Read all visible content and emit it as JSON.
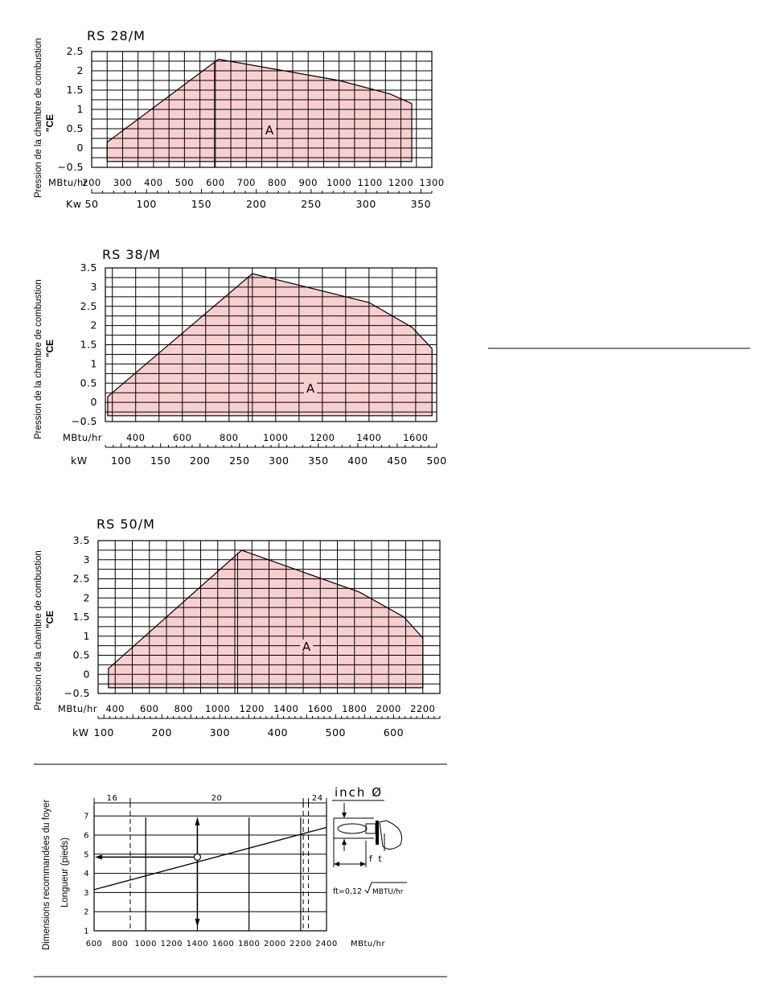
{
  "chart_data": [
    {
      "type": "area",
      "title": "RS 28/M",
      "ylabel_line1": "Pression de la chambre de combustion",
      "ylabel_line2": "\"CE",
      "x_unit": "MBtu/hr",
      "x_ticks": [
        "200",
        "300",
        "400",
        "500",
        "600",
        "700",
        "800",
        "900",
        "1000",
        "1100",
        "1200",
        "1300"
      ],
      "x_range": [
        200,
        1300
      ],
      "x2_unit": "Kw",
      "x2_ticks": [
        "50",
        "100",
        "150",
        "200",
        "250",
        "300",
        "350"
      ],
      "x2_range": [
        50,
        360
      ],
      "y_ticks": [
        "2.5",
        "2",
        "1.5",
        "1",
        "0.5",
        "0",
        "−0.5"
      ],
      "y_range": [
        -0.5,
        2.5
      ],
      "region_label": "A",
      "polygon": [
        [
          250,
          -0.35
        ],
        [
          250,
          0.15
        ],
        [
          610,
          2.3
        ],
        [
          1000,
          1.75
        ],
        [
          1165,
          1.4
        ],
        [
          1235,
          1.15
        ],
        [
          1235,
          -0.35
        ]
      ],
      "fill": "#f8cfd0"
    },
    {
      "type": "area",
      "title": "RS 38/M",
      "ylabel_line1": "Pression de la chambre de combustion",
      "ylabel_line2": "\"CE",
      "x_unit": "MBtu/hr",
      "x_ticks": [
        "400",
        "600",
        "800",
        "1000",
        "1200",
        "1400",
        "1600"
      ],
      "x_range": [
        270,
        1690
      ],
      "x2_unit": "kW",
      "x2_ticks": [
        "100",
        "150",
        "200",
        "250",
        "300",
        "350",
        "400",
        "450",
        "500"
      ],
      "x2_range": [
        80,
        500
      ],
      "y_ticks": [
        "3.5",
        "3",
        "2.5",
        "2",
        "1.5",
        "1",
        "0.5",
        "0",
        "−0.5"
      ],
      "y_range": [
        -0.5,
        3.5
      ],
      "region_label": "A",
      "polygon": [
        [
          280,
          -0.35
        ],
        [
          280,
          0.15
        ],
        [
          900,
          3.35
        ],
        [
          1400,
          2.6
        ],
        [
          1585,
          1.95
        ],
        [
          1670,
          1.4
        ],
        [
          1670,
          -0.35
        ]
      ],
      "fill": "#f8cfd0"
    },
    {
      "type": "area",
      "title": "RS 50/M",
      "ylabel_line1": "Pression de la chambre de combustion",
      "ylabel_line2": "\"CE",
      "x_unit": "MBtu/hr",
      "x_ticks": [
        "400",
        "600",
        "800",
        "1000",
        "1200",
        "1400",
        "1600",
        "1800",
        "2000",
        "2200"
      ],
      "x_range": [
        300,
        2300
      ],
      "x2_unit": "kW",
      "x2_ticks": [
        "100",
        "200",
        "300",
        "400",
        "500",
        "600"
      ],
      "x2_range": [
        90,
        680
      ],
      "y_ticks": [
        "3.5",
        "3",
        "2.5",
        "2",
        "1.5",
        "1",
        "0.5",
        "0",
        "−0.5"
      ],
      "y_range": [
        -0.5,
        3.5
      ],
      "region_label": "A",
      "polygon": [
        [
          360,
          -0.35
        ],
        [
          360,
          0.15
        ],
        [
          1140,
          3.25
        ],
        [
          1830,
          2.15
        ],
        [
          2090,
          1.5
        ],
        [
          2200,
          0.95
        ],
        [
          2200,
          -0.35
        ]
      ],
      "fill": "#f8cfd0"
    },
    {
      "type": "line",
      "ylabel_line1": "Dimensions recommandées du foyer",
      "ylabel_line2": "Longueur (pieds)",
      "x_unit": "MBtu/hr",
      "x_ticks": [
        "600",
        "800",
        "1000",
        "1200",
        "1400",
        "1600",
        "1800",
        "2000",
        "2200",
        "2400"
      ],
      "x_range": [
        600,
        2400
      ],
      "y_ticks": [
        "1",
        "2",
        "3",
        "4",
        "5",
        "6",
        "7"
      ],
      "y_range": [
        1,
        7.5
      ],
      "series": [
        {
          "x": [
            600,
            2400
          ],
          "y": [
            3.15,
            6.4
          ]
        }
      ],
      "marker_point": [
        1400,
        4.85
      ],
      "dashed_x": [
        880,
        2220,
        2260
      ],
      "dim_labels": [
        "16",
        "20",
        "24"
      ],
      "diagram_label": "inch Ø",
      "diagram_ft_label": "f t",
      "formula_text": "ft=0,12",
      "formula_radicand": "MBTU/hr"
    }
  ]
}
